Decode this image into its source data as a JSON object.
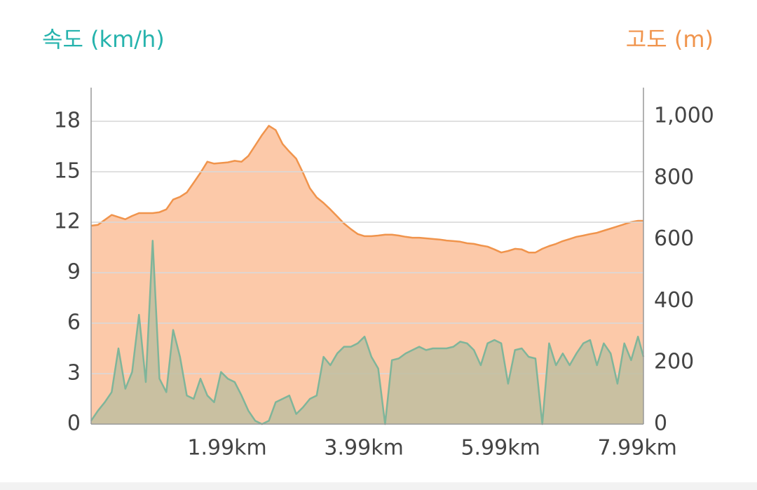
{
  "chart_data": {
    "type": "area",
    "x": [
      0,
      0.1,
      0.2,
      0.3,
      0.4,
      0.5,
      0.6,
      0.7,
      0.8,
      0.9,
      1.0,
      1.1,
      1.2,
      1.3,
      1.4,
      1.5,
      1.6,
      1.7,
      1.8,
      1.9,
      2.0,
      2.1,
      2.2,
      2.3,
      2.4,
      2.5,
      2.6,
      2.7,
      2.8,
      2.9,
      3.0,
      3.1,
      3.2,
      3.3,
      3.4,
      3.5,
      3.6,
      3.7,
      3.8,
      3.9,
      4.0,
      4.1,
      4.2,
      4.3,
      4.4,
      4.5,
      4.6,
      4.7,
      4.8,
      4.9,
      5.0,
      5.1,
      5.2,
      5.3,
      5.4,
      5.5,
      5.6,
      5.7,
      5.8,
      5.9,
      6.0,
      6.1,
      6.2,
      6.3,
      6.4,
      6.5,
      6.6,
      6.7,
      6.8,
      6.9,
      7.0,
      7.1,
      7.2,
      7.3,
      7.4,
      7.5,
      7.6,
      7.7,
      7.8,
      7.9,
      8.0,
      8.08
    ],
    "xlim": [
      0,
      8.08
    ],
    "xticks": [
      {
        "value": 1.99,
        "label": "1.99km"
      },
      {
        "value": 3.99,
        "label": "3.99km"
      },
      {
        "value": 5.99,
        "label": "5.99km"
      },
      {
        "value": 7.99,
        "label": "7.99km"
      }
    ],
    "y_label": "속도 (km/h)",
    "y2_label": "고도 (m)",
    "ylim": [
      0,
      20
    ],
    "yticks": [
      0,
      3,
      6,
      9,
      12,
      15,
      18
    ],
    "y2lim": [
      0,
      1094
    ],
    "y2ticks": [
      0,
      200,
      400,
      600,
      800,
      {
        "value": 1000,
        "label": "1,000"
      }
    ],
    "grid": true,
    "series": [
      {
        "name": "고도",
        "axis": "y2",
        "color": "#f0944c",
        "fill": "#fcc9a9",
        "values": [
          645,
          648,
          664,
          680,
          673,
          666,
          677,
          686,
          686,
          686,
          689,
          698,
          730,
          739,
          753,
          785,
          817,
          853,
          847,
          849,
          851,
          856,
          853,
          872,
          906,
          940,
          970,
          956,
          911,
          886,
          863,
          817,
          767,
          737,
          719,
          698,
          675,
          652,
          634,
          618,
          611,
          611,
          613,
          616,
          616,
          613,
          609,
          606,
          606,
          604,
          602,
          600,
          597,
          595,
          593,
          588,
          586,
          581,
          577,
          568,
          558,
          563,
          570,
          568,
          558,
          558,
          570,
          579,
          586,
          595,
          602,
          609,
          613,
          618,
          622,
          629,
          636,
          643,
          650,
          657,
          661,
          661
        ]
      },
      {
        "name": "속도",
        "axis": "y",
        "color": "#7fb59a",
        "fill": "#bfbea0",
        "values": [
          0.2,
          0.8,
          1.3,
          1.9,
          4.5,
          2.1,
          3.1,
          6.5,
          2.5,
          10.9,
          2.7,
          1.9,
          5.6,
          4.0,
          1.7,
          1.5,
          2.7,
          1.7,
          1.3,
          3.1,
          2.7,
          2.5,
          1.7,
          0.8,
          0.2,
          0,
          0.2,
          1.3,
          1.5,
          1.7,
          0.6,
          1.0,
          1.5,
          1.7,
          4.0,
          3.5,
          4.2,
          4.6,
          4.6,
          4.8,
          5.2,
          4.0,
          3.3,
          0,
          3.8,
          3.9,
          4.2,
          4.4,
          4.6,
          4.4,
          4.5,
          4.5,
          4.5,
          4.6,
          4.9,
          4.8,
          4.4,
          3.5,
          4.8,
          5.0,
          4.8,
          2.4,
          4.4,
          4.5,
          4.0,
          3.9,
          0,
          4.8,
          3.5,
          4.2,
          3.5,
          4.2,
          4.8,
          5.0,
          3.5,
          4.8,
          4.2,
          2.4,
          4.8,
          3.8,
          5.2,
          4.0
        ]
      }
    ]
  }
}
